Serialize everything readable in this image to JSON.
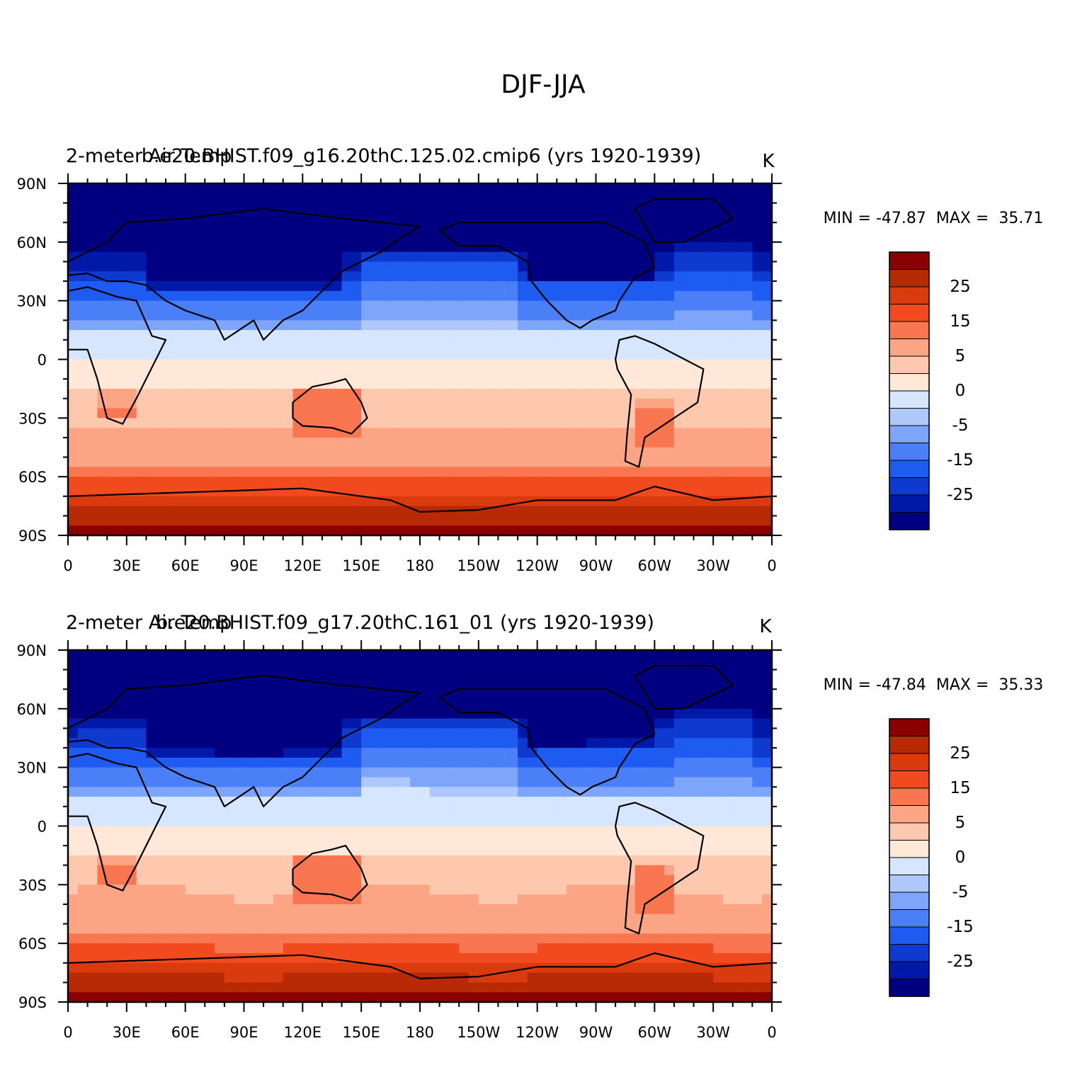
{
  "figure": {
    "title": "DJF-JJA"
  },
  "colors": {
    "levels": [
      -30,
      -25,
      -20,
      -15,
      -10,
      -5,
      -2.5,
      0,
      2.5,
      5,
      10,
      15,
      20,
      25,
      30
    ],
    "fills": [
      "#000080",
      "#0019A8",
      "#0E3AD0",
      "#1E5BF0",
      "#4A7FF8",
      "#7DA6FA",
      "#AFC8FC",
      "#D5E6FE",
      "#FFE8D8",
      "#FDC8AD",
      "#FBA584",
      "#FA7650",
      "#F14A1E",
      "#D93A0E",
      "#B72A05",
      "#8B0000"
    ],
    "coastline": "#000000"
  },
  "axes": {
    "lon_ticks": [
      "0",
      "30E",
      "60E",
      "90E",
      "120E",
      "150E",
      "180",
      "150W",
      "120W",
      "90W",
      "60W",
      "30W",
      "0"
    ],
    "lat_ticks": [
      "90N",
      "60N",
      "30N",
      "0",
      "30S",
      "60S",
      "90S"
    ]
  },
  "panels": [
    {
      "left_title": "2-meter Air Temp",
      "center_title": "b.e20.BHIST.f09_g16.20thC.125.02.cmip6 (yrs 1920-1939)",
      "units": "K",
      "stats": "MIN = -47.87  MAX =  35.71",
      "min": -47.87,
      "max": 35.71
    },
    {
      "left_title": "2-meter Air Temp",
      "center_title": "b.e20.BHIST.f09_g17.20thC.161_01 (yrs 1920-1939)",
      "units": "K",
      "stats": "MIN = -47.84  MAX =  35.33",
      "min": -47.84,
      "max": 35.33
    }
  ],
  "colorbar": {
    "labels": [
      "25",
      "15",
      "5",
      "0",
      "-5",
      "-15",
      "-25"
    ]
  }
}
